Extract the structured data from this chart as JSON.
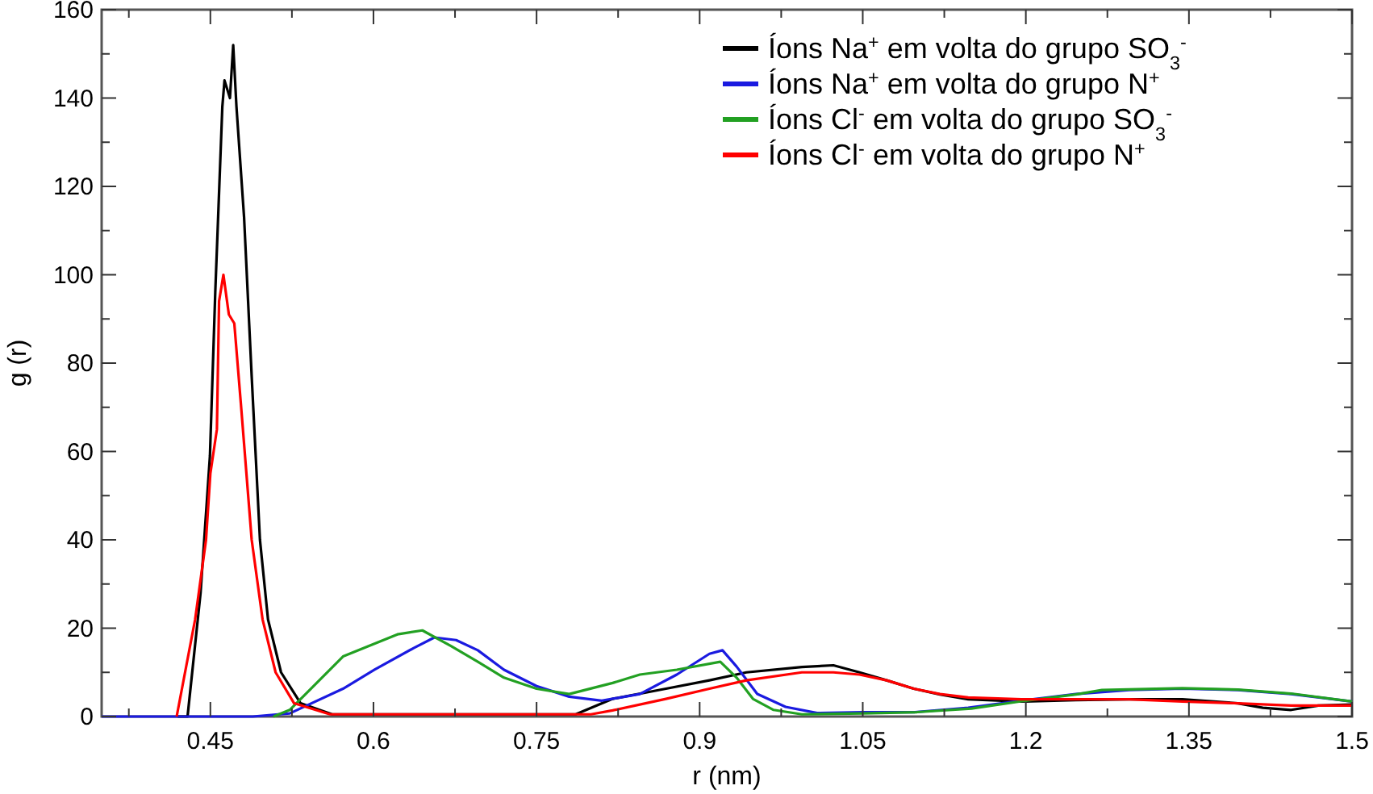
{
  "chart_data": {
    "type": "line",
    "xlabel": "r (nm)",
    "ylabel": "g (r)",
    "xlim": [
      0.35,
      1.5
    ],
    "ylim": [
      0,
      160
    ],
    "xticks": [
      {
        "value": 0.375,
        "label": null
      },
      0.45,
      {
        "value": 0.525,
        "label": null
      },
      0.6,
      {
        "value": 0.675,
        "label": null
      },
      0.75,
      {
        "value": 0.825,
        "label": null
      },
      0.9,
      {
        "value": 0.975,
        "label": null
      },
      1.05,
      {
        "value": 1.125,
        "label": null
      },
      1.2,
      {
        "value": 1.275,
        "label": null
      },
      1.35,
      {
        "value": 1.425,
        "label": null
      },
      1.5
    ],
    "yticks": [
      0,
      {
        "value": 10,
        "label": null
      },
      20,
      {
        "value": 30,
        "label": null
      },
      40,
      {
        "value": 50,
        "label": null
      },
      60,
      {
        "value": 70,
        "label": null
      },
      80,
      {
        "value": 90,
        "label": null
      },
      100,
      {
        "value": 110,
        "label": null
      },
      120,
      {
        "value": 130,
        "label": null
      },
      140,
      {
        "value": 150,
        "label": null
      },
      160
    ],
    "grid": false,
    "legend": "top right",
    "marker": "none",
    "line_style": "solid",
    "series": [
      {
        "name": "Íons Na$^{+}$ em volta do grupo SO$_{3}$$^{-}$",
        "color": "#000000",
        "x": [
          0.42,
          0.429,
          0.441,
          0.4496,
          0.4545,
          0.461,
          0.463,
          0.468,
          0.471,
          0.474,
          0.481,
          0.488,
          0.4956,
          0.503,
          0.515,
          0.533,
          0.562,
          0.6,
          0.7,
          0.786,
          0.82,
          0.869,
          0.909,
          0.943,
          0.994,
          1.023,
          1.047,
          1.072,
          1.097,
          1.121,
          1.147,
          1.196,
          1.246,
          1.295,
          1.344,
          1.395,
          1.418,
          1.444,
          1.469,
          1.5
        ],
        "values": [
          0,
          0,
          28,
          59,
          96,
          138,
          144,
          140,
          152,
          138,
          113,
          77,
          40,
          22,
          10,
          3,
          0.5,
          0.5,
          0.5,
          0.5,
          4,
          6.3,
          8.2,
          10,
          11.2,
          11.6,
          10,
          8.2,
          6.3,
          5,
          3.9,
          3.4,
          3.7,
          3.9,
          3.9,
          3,
          2,
          1.5,
          2.5,
          2.7
        ]
      },
      {
        "name": "Íons Na$^{+}$ em volta do grupo N$^{+}$",
        "color": "#1a1ae0",
        "x": [
          0.35,
          0.489,
          0.523,
          0.572,
          0.601,
          0.637,
          0.656,
          0.676,
          0.696,
          0.72,
          0.75,
          0.78,
          0.81,
          0.845,
          0.879,
          0.909,
          0.921,
          0.934,
          0.953,
          0.979,
          1.008,
          1.05,
          1.098,
          1.147,
          1.196,
          1.246,
          1.295,
          1.344,
          1.395,
          1.444,
          1.5
        ],
        "values": [
          0,
          0,
          0.7,
          6.3,
          10.6,
          15.5,
          17.9,
          17.3,
          15,
          10.6,
          6.9,
          4.5,
          3.6,
          5.1,
          9.5,
          14.2,
          15,
          11.3,
          5.1,
          2.2,
          0.8,
          1,
          1,
          2,
          3.6,
          5.1,
          6,
          6.3,
          6,
          5.1,
          3.4
        ]
      },
      {
        "name": "Íons Cl$^{-}$ em volta do grupo SO$_{3}$$^{-}$",
        "color": "#22a022",
        "x": [
          0.508,
          0.523,
          0.572,
          0.622,
          0.645,
          0.671,
          0.696,
          0.72,
          0.75,
          0.78,
          0.82,
          0.845,
          0.879,
          0.919,
          0.934,
          0.949,
          0.968,
          0.994,
          1.05,
          1.1,
          1.15,
          1.2,
          1.246,
          1.27,
          1.344,
          1.395,
          1.444,
          1.5
        ],
        "values": [
          0,
          1.5,
          13.6,
          18.6,
          19.5,
          16,
          12.4,
          8.8,
          6.3,
          5.1,
          7.6,
          9.5,
          10.6,
          12.4,
          8.8,
          4,
          1.5,
          0.5,
          0.7,
          1,
          1.8,
          3.6,
          5,
          6,
          6.4,
          6.1,
          5.2,
          3.4
        ]
      },
      {
        "name": "Íons Cl$^{-}$ em volta do grupo N$^{+}$",
        "color": "#ff0000",
        "x": [
          0.419,
          0.436,
          0.446,
          0.45,
          0.456,
          0.458,
          0.462,
          0.467,
          0.472,
          0.478,
          0.488,
          0.498,
          0.51,
          0.527,
          0.56,
          0.7,
          0.8,
          0.82,
          0.869,
          0.909,
          0.943,
          0.994,
          1.023,
          1.047,
          1.072,
          1.097,
          1.121,
          1.147,
          1.196,
          1.246,
          1.295,
          1.344,
          1.395,
          1.444,
          1.5
        ],
        "values": [
          0,
          22,
          40,
          55,
          65,
          94,
          100,
          91,
          89,
          71,
          40,
          22,
          10,
          3,
          0.5,
          0.5,
          0.5,
          1.4,
          4,
          6.3,
          8.2,
          10,
          10,
          9.5,
          8.2,
          6.3,
          5.1,
          4.3,
          3.9,
          3.9,
          3.9,
          3.4,
          3,
          2.5,
          2.5
        ]
      }
    ]
  }
}
